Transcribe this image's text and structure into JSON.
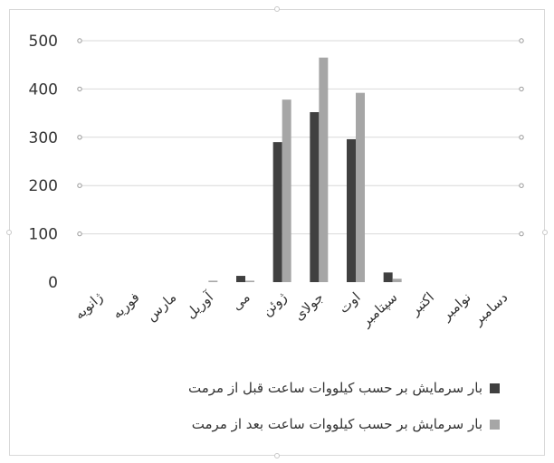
{
  "chart_data": {
    "type": "bar",
    "categories": [
      "ژانویه",
      "فوریه",
      "مارس",
      "آوریل",
      "می",
      "ژوئن",
      "جولای",
      "اوت",
      "سپتامبر",
      "اکتبر",
      "نوامبر",
      "دسامبر"
    ],
    "series": [
      {
        "name": "بار سرمایش بر حسب کیلووات ساعت قبل از مرمت",
        "color": "#404040",
        "values": [
          0,
          0,
          0,
          0,
          13,
          290,
          352,
          296,
          20,
          0,
          0,
          0
        ]
      },
      {
        "name": "بار سرمایش بر حسب کیلووات ساعت بعد از مرمت",
        "color": "#a6a6a6",
        "values": [
          0,
          0,
          0,
          3,
          3,
          378,
          465,
          392,
          7,
          0,
          0,
          0
        ]
      }
    ],
    "yticks": [
      "0",
      "100",
      "200",
      "300",
      "400",
      "500"
    ],
    "ylim": [
      0,
      500
    ],
    "grid": true,
    "legend_position": "bottom"
  }
}
